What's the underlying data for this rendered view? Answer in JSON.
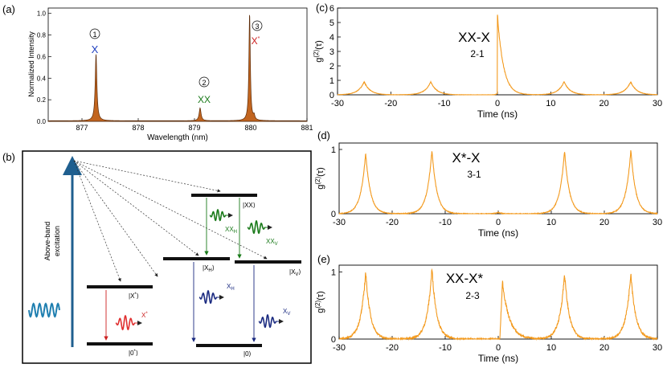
{
  "figure": {
    "panel_labels": {
      "a": "(a)",
      "b": "(b)",
      "c": "(c)",
      "d": "(d)",
      "e": "(e)"
    },
    "colors": {
      "spectrum_fill": "#c2651f",
      "trace": "#f39a1e",
      "x_color": "#2040c0",
      "xx_color": "#1a7a1a",
      "xstar_color": "#cc2020",
      "dark": "#111111"
    }
  },
  "panel_a": {
    "peak_markers": [
      {
        "num": "1",
        "label": "X"
      },
      {
        "num": "2",
        "label": "XX"
      },
      {
        "num": "3",
        "label": "X",
        "label_sup": "*"
      }
    ]
  },
  "panel_b": {
    "excitation_label_line1": "Above-band",
    "excitation_label_line2": "excitation",
    "levels": {
      "xx": "|XX⟩",
      "xh": "|X",
      "xh_sub": "H",
      "xv": "|X",
      "xv_sub": "V",
      "xstar": "|X",
      "xstar_sup": "*",
      "zerostar": "|0",
      "zerostar_sup": "*",
      "zero": "|0⟩",
      "ket_close": "⟩"
    },
    "photons": {
      "xx_h": "XX",
      "xx_h_sub": "H",
      "xx_v": "XX",
      "xx_v_sub": "V",
      "x_h": "X",
      "x_h_sub": "H",
      "x_v": "X",
      "x_v_sub": "V",
      "x_star": "X",
      "x_star_sup": "*"
    }
  },
  "chart_data": [
    {
      "id": "a",
      "type": "area",
      "title": "",
      "xlabel": "Wavelength (nm)",
      "ylabel": "Normalized Intensity",
      "xlim": [
        876.4,
        881.0
      ],
      "ylim": [
        0.0,
        1.05
      ],
      "xticks": [
        877,
        878,
        879,
        880,
        881
      ],
      "yticks": [
        0.0,
        0.2,
        0.4,
        0.6,
        0.8,
        1.0
      ],
      "peaks": [
        {
          "center": 877.25,
          "height": 0.62,
          "width": 0.018
        },
        {
          "center": 879.1,
          "height": 0.12,
          "width": 0.02
        },
        {
          "center": 879.98,
          "height": 1.0,
          "width": 0.015
        },
        {
          "center": 880.06,
          "height": 0.04,
          "width": 0.015
        }
      ],
      "baseline": 0.005
    },
    {
      "id": "c",
      "type": "line",
      "annotation": "XX-X",
      "annotation_sub": "2-1",
      "xlabel": "Time (ns)",
      "ylabel": "g",
      "ylabel_sup": "(2)",
      "ylabel_arg": "(τ)",
      "xlim": [
        -30,
        30
      ],
      "ylim": [
        0,
        6
      ],
      "xticks": [
        -30,
        -20,
        -10,
        0,
        10,
        20,
        30
      ],
      "yticks": [
        0,
        1,
        2,
        3,
        4,
        5,
        6
      ],
      "side_peaks": [
        {
          "t": -25,
          "height": 0.9
        },
        {
          "t": -12.5,
          "height": 0.9
        },
        {
          "t": 12.5,
          "height": 0.9
        },
        {
          "t": 25,
          "height": 0.9
        }
      ],
      "center_peak": {
        "t": 0,
        "height": 5.6,
        "shape": "bunching"
      }
    },
    {
      "id": "d",
      "type": "line",
      "annotation": "X*-X",
      "annotation_sub": "3-1",
      "xlabel": "Time (ns)",
      "ylabel": "g",
      "ylabel_sup": "(2)",
      "ylabel_arg": "(τ)",
      "xlim": [
        -30,
        30
      ],
      "ylim": [
        0,
        1.1
      ],
      "xticks": [
        -30,
        -20,
        -10,
        0,
        10,
        20,
        30
      ],
      "yticks": [
        0,
        1
      ],
      "side_peaks": [
        {
          "t": -25,
          "height": 0.95
        },
        {
          "t": -12.5,
          "height": 1.0
        },
        {
          "t": 12.5,
          "height": 0.98
        },
        {
          "t": 25,
          "height": 1.0
        }
      ],
      "center_peak": {
        "t": 0,
        "height": 0.02,
        "shape": "antibunching"
      }
    },
    {
      "id": "e",
      "type": "line",
      "annotation": "XX-X*",
      "annotation_sub": "2-3",
      "xlabel": "Time (ns)",
      "ylabel": "g",
      "ylabel_sup": "(2)",
      "ylabel_arg": "(τ)",
      "xlim": [
        -30,
        30
      ],
      "ylim": [
        0,
        1.1
      ],
      "xticks": [
        -30,
        -20,
        -10,
        0,
        10,
        20,
        30
      ],
      "yticks": [
        0,
        1
      ],
      "side_peaks": [
        {
          "t": -25,
          "height": 1.0
        },
        {
          "t": -12.5,
          "height": 1.05
        },
        {
          "t": 12.5,
          "height": 0.98
        },
        {
          "t": 25,
          "height": 1.0
        }
      ],
      "center_peak": {
        "t": 0.8,
        "height": 0.85,
        "shape": "asymmetric"
      }
    }
  ]
}
